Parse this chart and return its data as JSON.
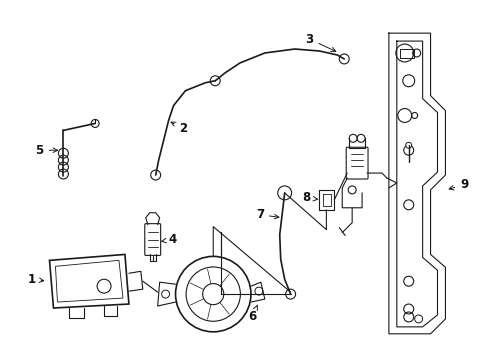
{
  "bg_color": "#ffffff",
  "line_color": "#1a1a1a",
  "label_color": "#111111",
  "fig_width": 4.89,
  "fig_height": 3.6,
  "dpi": 100
}
